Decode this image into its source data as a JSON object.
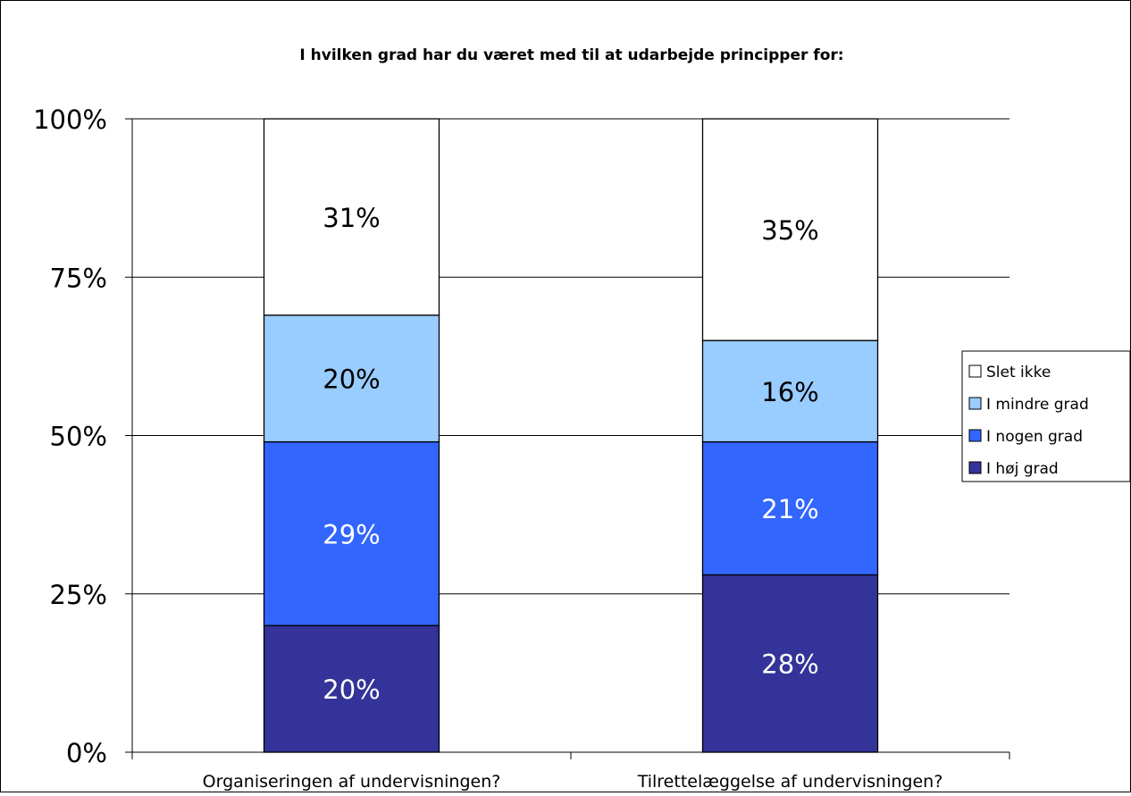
{
  "chart_data": {
    "type": "bar",
    "stacked": true,
    "percent_stacked": true,
    "title": "I hvilken grad har du været med til at udarbejde principper for:",
    "xlabel": "",
    "ylabel": "",
    "ylim": [
      0,
      100
    ],
    "yticks": [
      "0%",
      "25%",
      "50%",
      "75%",
      "100%"
    ],
    "ytick_values": [
      0,
      25,
      50,
      75,
      100
    ],
    "grid": true,
    "legend_position": "right",
    "categories": [
      "Organiseringen af undervisningen?",
      "Tilrettelæggelse af undervisningen?"
    ],
    "series": [
      {
        "name": "I høj grad",
        "color": "#333399",
        "label_color": "#ffffff",
        "values": [
          20,
          28
        ],
        "labels": [
          "20%",
          "28%"
        ]
      },
      {
        "name": "I nogen grad",
        "color": "#3366FF",
        "label_color": "#ffffff",
        "values": [
          29,
          21
        ],
        "labels": [
          "29%",
          "21%"
        ]
      },
      {
        "name": "I mindre grad",
        "color": "#99CCFF",
        "label_color": "#000000",
        "values": [
          20,
          16
        ],
        "labels": [
          "20%",
          "16%"
        ]
      },
      {
        "name": "Slet ikke",
        "color": "#FFFFFF",
        "label_color": "#000000",
        "values": [
          31,
          35
        ],
        "labels": [
          "31%",
          "35%"
        ]
      }
    ],
    "legend_order": [
      "Slet ikke",
      "I mindre grad",
      "I nogen grad",
      "I høj grad"
    ]
  }
}
